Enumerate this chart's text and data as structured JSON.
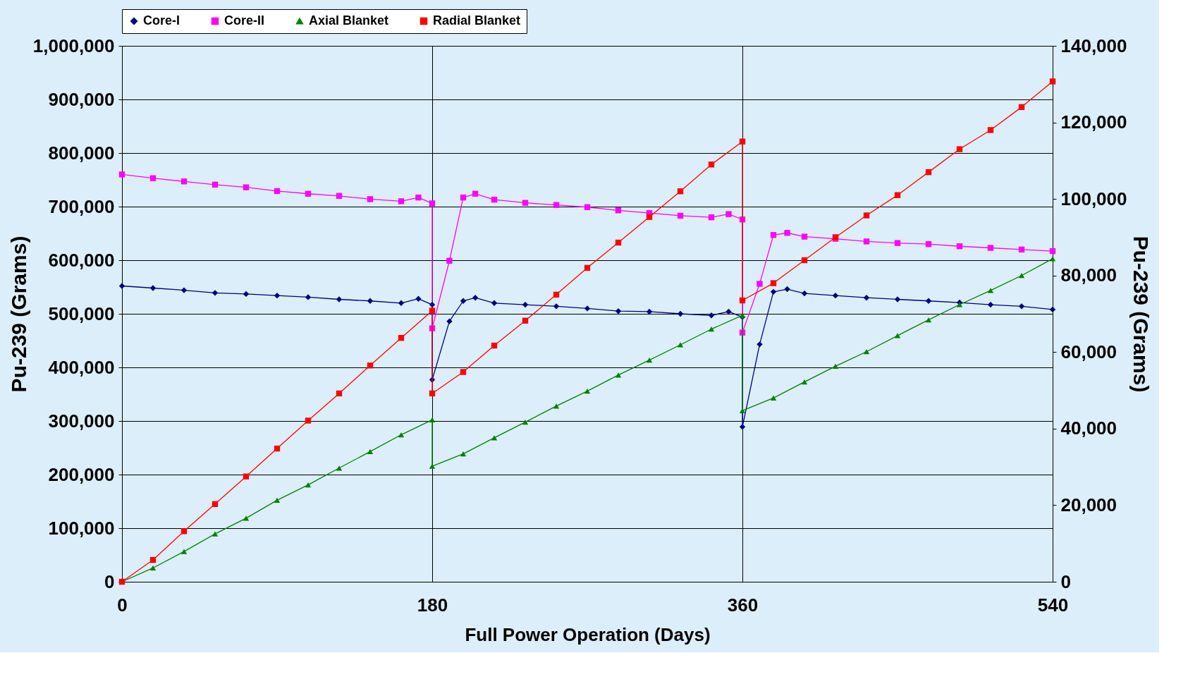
{
  "chart_data": {
    "type": "line",
    "xlabel": "Full Power Operation (Days)",
    "ylabel": "Pu-239 (Grams)",
    "y2label": "Pu-239 (Grams)",
    "xlim": [
      0,
      540
    ],
    "xticks": [
      0,
      180,
      360,
      540
    ],
    "ylim": [
      0,
      1000000
    ],
    "yticks": [
      0,
      {
        "value": 100000,
        "label": "100,000"
      },
      {
        "value": 200000,
        "label": "200,000"
      },
      {
        "value": 300000,
        "label": "300,000"
      },
      {
        "value": 400000,
        "label": "400,000"
      },
      {
        "value": 500000,
        "label": "500,000"
      },
      {
        "value": 600000,
        "label": "600,000"
      },
      {
        "value": 700000,
        "label": "700,000"
      },
      {
        "value": 800000,
        "label": "800,000"
      },
      {
        "value": 900000,
        "label": "900,000"
      },
      {
        "value": 1000000,
        "label": "1,000,000"
      }
    ],
    "y2lim": [
      0,
      140000
    ],
    "y2ticks": [
      0,
      {
        "value": 20000,
        "label": "20,000"
      },
      {
        "value": 40000,
        "label": "40,000"
      },
      {
        "value": 60000,
        "label": "60,000"
      },
      {
        "value": 80000,
        "label": "80,000"
      },
      {
        "value": 100000,
        "label": "100,000"
      },
      {
        "value": 120000,
        "label": "120,000"
      },
      {
        "value": 140000,
        "label": "140,000"
      }
    ],
    "grid": true,
    "legend": "top",
    "line_style": "solid",
    "series": [
      {
        "name": "Core-I",
        "color": "#000080",
        "marker": "diamond",
        "x": [
          0,
          18,
          36,
          54,
          72,
          90,
          108,
          126,
          144,
          162,
          172,
          180,
          180,
          190,
          198,
          205,
          216,
          234,
          252,
          270,
          288,
          306,
          324,
          342,
          352,
          360,
          360,
          370,
          378,
          386,
          396,
          414,
          432,
          450,
          468,
          486,
          504,
          522,
          540
        ],
        "values": [
          552000,
          548000,
          544000,
          539000,
          537000,
          534000,
          531000,
          527000,
          524000,
          520000,
          528000,
          517000,
          377000,
          486000,
          524000,
          530000,
          520000,
          517000,
          514000,
          510000,
          505000,
          504000,
          500000,
          497000,
          504000,
          494000,
          289000,
          443000,
          541000,
          546000,
          538000,
          534000,
          530000,
          527000,
          524000,
          521000,
          517000,
          514000,
          508000
        ]
      },
      {
        "name": "Core-II",
        "color": "#ff00ff",
        "marker": "square",
        "x": [
          0,
          18,
          36,
          54,
          72,
          90,
          108,
          126,
          144,
          162,
          172,
          180,
          180,
          190,
          198,
          205,
          216,
          234,
          252,
          270,
          288,
          306,
          324,
          342,
          352,
          360,
          360,
          370,
          378,
          386,
          396,
          414,
          432,
          450,
          468,
          486,
          504,
          522,
          540
        ],
        "values": [
          760000,
          753000,
          747000,
          741000,
          736000,
          729000,
          724000,
          720000,
          714000,
          710000,
          717000,
          706000,
          473000,
          599000,
          717000,
          724000,
          713000,
          707000,
          703000,
          699000,
          693000,
          688000,
          683000,
          680000,
          686000,
          676000,
          465000,
          556000,
          647000,
          651000,
          644000,
          640000,
          635000,
          632000,
          630000,
          626000,
          623000,
          620000,
          617000
        ]
      },
      {
        "name": "Axial Blanket",
        "color": "#008000",
        "marker": "triangle",
        "axis": "y2",
        "x": [
          0,
          18,
          36,
          54,
          72,
          90,
          108,
          126,
          144,
          162,
          180,
          180,
          198,
          216,
          234,
          252,
          270,
          288,
          306,
          324,
          342,
          360,
          360,
          378,
          396,
          414,
          432,
          450,
          468,
          486,
          504,
          522,
          540
        ],
        "values": [
          0,
          3600,
          7900,
          12500,
          16600,
          21300,
          25300,
          29700,
          34000,
          38400,
          42300,
          30200,
          33400,
          37600,
          41700,
          45900,
          49800,
          54000,
          57900,
          61900,
          66000,
          69600,
          44700,
          48000,
          52200,
          56300,
          60100,
          64300,
          68400,
          72400,
          76100,
          80000,
          84400
        ]
      },
      {
        "name": "Radial Blanket",
        "color": "#ff0000",
        "marker": "square",
        "axis": "y2",
        "x": [
          0,
          18,
          36,
          54,
          72,
          90,
          108,
          126,
          144,
          162,
          180,
          180,
          198,
          216,
          234,
          252,
          270,
          288,
          306,
          324,
          342,
          360,
          360,
          378,
          396,
          414,
          432,
          450,
          468,
          486,
          504,
          522,
          540
        ],
        "values": [
          0,
          5700,
          13200,
          20300,
          27500,
          34800,
          42100,
          49200,
          56500,
          63700,
          70800,
          49200,
          54800,
          61700,
          68200,
          75000,
          82000,
          88600,
          95300,
          102000,
          109000,
          115000,
          73500,
          78000,
          84000,
          90000,
          95700,
          101000,
          107000,
          113000,
          118000,
          124000,
          130700
        ]
      }
    ]
  }
}
